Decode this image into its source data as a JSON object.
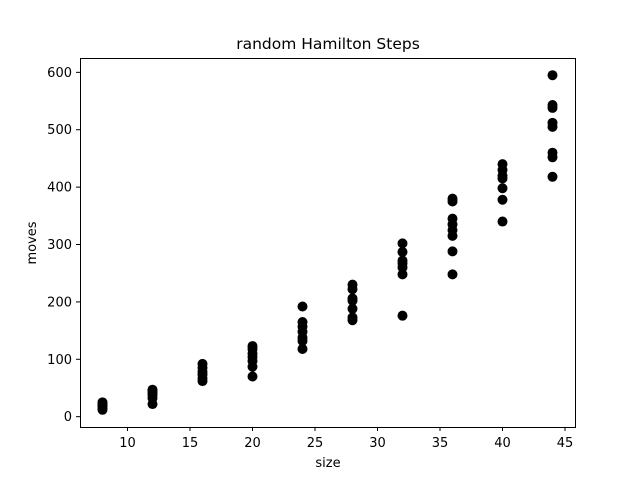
{
  "chart_data": {
    "type": "scatter",
    "title": "random Hamilton Steps",
    "xlabel": "size",
    "ylabel": "moves",
    "xlim": [
      6.2,
      45.8
    ],
    "ylim": [
      -18,
      625
    ],
    "x_ticks": [
      10,
      15,
      20,
      25,
      30,
      35,
      40,
      45
    ],
    "y_ticks": [
      0,
      100,
      200,
      300,
      400,
      500,
      600
    ],
    "grid": false,
    "marker_color": "#000000",
    "series": [
      {
        "points": [
          {
            "x": 8,
            "y": 12
          },
          {
            "x": 8,
            "y": 15
          },
          {
            "x": 8,
            "y": 18
          },
          {
            "x": 8,
            "y": 20
          },
          {
            "x": 8,
            "y": 22
          },
          {
            "x": 8,
            "y": 25
          },
          {
            "x": 12,
            "y": 22
          },
          {
            "x": 12,
            "y": 32
          },
          {
            "x": 12,
            "y": 38
          },
          {
            "x": 12,
            "y": 42
          },
          {
            "x": 12,
            "y": 45
          },
          {
            "x": 12,
            "y": 47
          },
          {
            "x": 16,
            "y": 62
          },
          {
            "x": 16,
            "y": 67
          },
          {
            "x": 16,
            "y": 73
          },
          {
            "x": 16,
            "y": 78
          },
          {
            "x": 16,
            "y": 85
          },
          {
            "x": 16,
            "y": 92
          },
          {
            "x": 20,
            "y": 70
          },
          {
            "x": 20,
            "y": 87
          },
          {
            "x": 20,
            "y": 97
          },
          {
            "x": 20,
            "y": 104
          },
          {
            "x": 20,
            "y": 110
          },
          {
            "x": 20,
            "y": 118
          },
          {
            "x": 20,
            "y": 123
          },
          {
            "x": 24,
            "y": 118
          },
          {
            "x": 24,
            "y": 132
          },
          {
            "x": 24,
            "y": 138
          },
          {
            "x": 24,
            "y": 148
          },
          {
            "x": 24,
            "y": 157
          },
          {
            "x": 24,
            "y": 165
          },
          {
            "x": 24,
            "y": 192
          },
          {
            "x": 28,
            "y": 168
          },
          {
            "x": 28,
            "y": 173
          },
          {
            "x": 28,
            "y": 188
          },
          {
            "x": 28,
            "y": 202
          },
          {
            "x": 28,
            "y": 206
          },
          {
            "x": 28,
            "y": 222
          },
          {
            "x": 28,
            "y": 230
          },
          {
            "x": 32,
            "y": 176
          },
          {
            "x": 32,
            "y": 248
          },
          {
            "x": 32,
            "y": 260
          },
          {
            "x": 32,
            "y": 267
          },
          {
            "x": 32,
            "y": 272
          },
          {
            "x": 32,
            "y": 287
          },
          {
            "x": 32,
            "y": 302
          },
          {
            "x": 36,
            "y": 248
          },
          {
            "x": 36,
            "y": 288
          },
          {
            "x": 36,
            "y": 315
          },
          {
            "x": 36,
            "y": 325
          },
          {
            "x": 36,
            "y": 335
          },
          {
            "x": 36,
            "y": 345
          },
          {
            "x": 36,
            "y": 375
          },
          {
            "x": 36,
            "y": 380
          },
          {
            "x": 40,
            "y": 340
          },
          {
            "x": 40,
            "y": 378
          },
          {
            "x": 40,
            "y": 398
          },
          {
            "x": 40,
            "y": 415
          },
          {
            "x": 40,
            "y": 420
          },
          {
            "x": 40,
            "y": 430
          },
          {
            "x": 40,
            "y": 440
          },
          {
            "x": 44,
            "y": 418
          },
          {
            "x": 44,
            "y": 452
          },
          {
            "x": 44,
            "y": 460
          },
          {
            "x": 44,
            "y": 505
          },
          {
            "x": 44,
            "y": 512
          },
          {
            "x": 44,
            "y": 538
          },
          {
            "x": 44,
            "y": 543
          },
          {
            "x": 44,
            "y": 595
          }
        ]
      }
    ]
  }
}
